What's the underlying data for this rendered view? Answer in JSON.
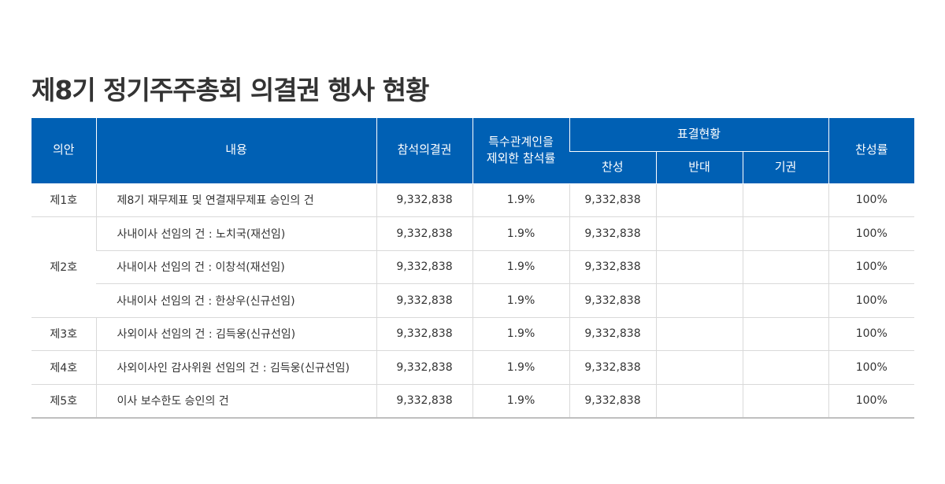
{
  "title": "제8기 정기주주총회 의결권 행사 현황",
  "header": {
    "agenda": "의안",
    "content": "내용",
    "attended": "참석의결권",
    "ratio_line1": "특수관계인을",
    "ratio_line2": "제외한 참석률",
    "vote_status": "표결현황",
    "approve": "찬성",
    "oppose": "반대",
    "abstain": "기권",
    "approval_rate": "찬성률"
  },
  "rows": [
    {
      "agenda": "제1호",
      "content": "제8기 재무제표 및 연결재무제표 승인의 건",
      "attended": "9,332,838",
      "ratio": "1.9%",
      "approve": "9,332,838",
      "oppose": "",
      "abstain": "",
      "rate": "100%"
    },
    {
      "agenda": "제2호",
      "content": "사내이사 선임의 건 : 노치국(재선임)",
      "attended": "9,332,838",
      "ratio": "1.9%",
      "approve": "9,332,838",
      "oppose": "",
      "abstain": "",
      "rate": "100%"
    },
    {
      "agenda": "",
      "content": "사내이사 선임의 건 : 이창석(재선임)",
      "attended": "9,332,838",
      "ratio": "1.9%",
      "approve": "9,332,838",
      "oppose": "",
      "abstain": "",
      "rate": "100%"
    },
    {
      "agenda": "",
      "content": "사내이사 선임의 건 : 한상우(신규선임)",
      "attended": "9,332,838",
      "ratio": "1.9%",
      "approve": "9,332,838",
      "oppose": "",
      "abstain": "",
      "rate": "100%"
    },
    {
      "agenda": "제3호",
      "content": "사외이사 선임의 건 : 김득웅(신규선임)",
      "attended": "9,332,838",
      "ratio": "1.9%",
      "approve": "9,332,838",
      "oppose": "",
      "abstain": "",
      "rate": "100%"
    },
    {
      "agenda": "제4호",
      "content": "사외이사인 감사위원 선임의 건 : 김득웅(신규선임)",
      "attended": "9,332,838",
      "ratio": "1.9%",
      "approve": "9,332,838",
      "oppose": "",
      "abstain": "",
      "rate": "100%"
    },
    {
      "agenda": "제5호",
      "content": "이사 보수한도 승인의 건",
      "attended": "9,332,838",
      "ratio": "1.9%",
      "approve": "9,332,838",
      "oppose": "",
      "abstain": "",
      "rate": "100%"
    }
  ],
  "colors": {
    "header_bg": "#0060b4",
    "header_text": "#ffffff",
    "border": "#d9d9d9"
  }
}
